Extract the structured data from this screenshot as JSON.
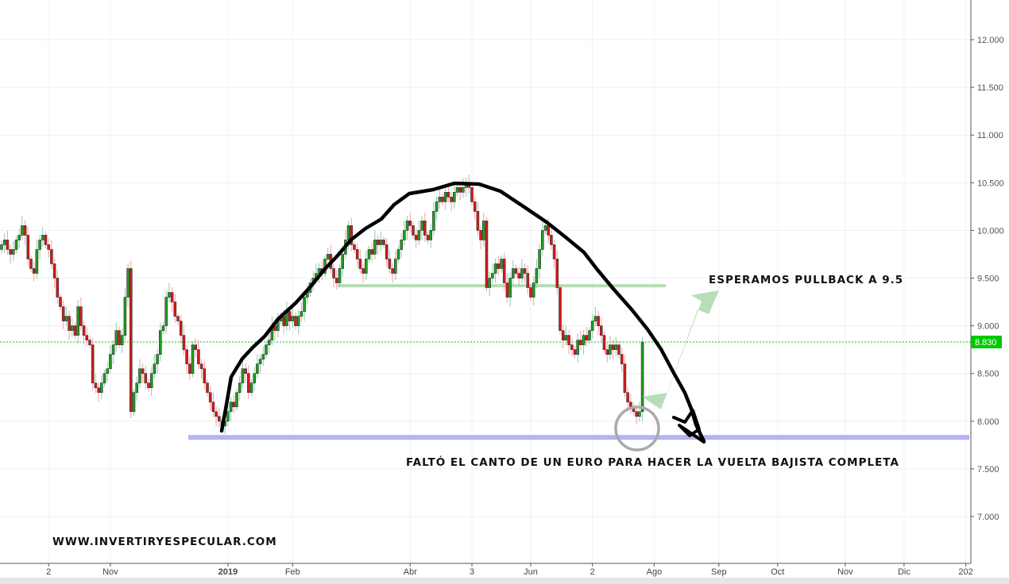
{
  "chart_data": {
    "type": "candlestick",
    "ylim": [
      6.6,
      12.4
    ],
    "y_ticks": [
      "12.000",
      "11.500",
      "11.000",
      "10.500",
      "10.000",
      "9.500",
      "9.000",
      "8.500",
      "8.000",
      "7.500",
      "7.000"
    ],
    "y_tick_values": [
      12,
      11.5,
      11,
      10.5,
      10,
      9.5,
      9,
      8.5,
      8,
      7.5,
      7
    ],
    "x_ticks": [
      {
        "label": "2",
        "bar": 16
      },
      {
        "label": "Nov",
        "bar": 37
      },
      {
        "label": "2019",
        "bar": 77
      },
      {
        "label": "Feb",
        "bar": 99
      },
      {
        "label": "Abr",
        "bar": 139
      },
      {
        "label": "3",
        "bar": 160
      },
      {
        "label": "Jun",
        "bar": 180
      },
      {
        "label": "2",
        "bar": 201
      },
      {
        "label": "Ago",
        "bar": 222
      },
      {
        "label": "Sep",
        "bar": 244
      },
      {
        "label": "Oct",
        "bar": 264
      },
      {
        "label": "Nov",
        "bar": 287
      },
      {
        "label": "Dic",
        "bar": 307
      },
      {
        "label": "202",
        "bar": 328
      }
    ],
    "closes": [
      9.85,
      9.9,
      9.8,
      9.75,
      9.8,
      9.9,
      9.95,
      10.05,
      9.95,
      9.7,
      9.6,
      9.55,
      9.8,
      9.9,
      9.95,
      9.85,
      9.8,
      9.65,
      9.5,
      9.3,
      9.2,
      9.05,
      9.1,
      8.95,
      9.0,
      8.9,
      9.2,
      9.0,
      8.9,
      8.85,
      8.8,
      8.4,
      8.35,
      8.3,
      8.4,
      8.5,
      8.55,
      8.7,
      8.8,
      8.95,
      8.8,
      8.9,
      9.3,
      9.6,
      8.1,
      8.3,
      8.4,
      8.55,
      8.5,
      8.4,
      8.35,
      8.5,
      8.6,
      8.7,
      8.95,
      9.0,
      9.3,
      9.35,
      9.25,
      9.1,
      9.05,
      8.9,
      8.75,
      8.6,
      8.5,
      8.8,
      8.75,
      8.6,
      8.55,
      8.4,
      8.3,
      8.2,
      8.1,
      8.05,
      8.0,
      7.95,
      8.0,
      8.1,
      8.2,
      8.15,
      8.3,
      8.4,
      8.55,
      8.5,
      8.3,
      8.4,
      8.5,
      8.6,
      8.65,
      8.7,
      8.8,
      8.85,
      9.0,
      8.95,
      9.05,
      9.1,
      9.0,
      9.15,
      9.05,
      9.1,
      9.0,
      9.1,
      9.15,
      9.3,
      9.35,
      9.45,
      9.5,
      9.55,
      9.6,
      9.55,
      9.7,
      9.75,
      9.6,
      9.5,
      9.45,
      9.6,
      9.75,
      9.9,
      10.05,
      9.85,
      9.8,
      9.7,
      9.6,
      9.55,
      9.7,
      9.8,
      9.75,
      9.9,
      9.85,
      9.9,
      9.85,
      9.7,
      9.6,
      9.55,
      9.7,
      9.8,
      9.9,
      10.0,
      10.1,
      10.05,
      9.95,
      9.9,
      10.0,
      10.1,
      9.95,
      9.9,
      10.0,
      10.2,
      10.3,
      10.35,
      10.3,
      10.4,
      10.35,
      10.3,
      10.4,
      10.45,
      10.4,
      10.45,
      10.5,
      10.45,
      10.3,
      10.2,
      10.0,
      9.9,
      10.1,
      9.4,
      9.5,
      9.55,
      9.65,
      9.6,
      9.7,
      9.45,
      9.3,
      9.5,
      9.6,
      9.55,
      9.5,
      9.6,
      9.55,
      9.4,
      9.3,
      9.45,
      9.6,
      9.8,
      10.0,
      10.05,
      9.95,
      9.85,
      9.7,
      9.4,
      8.95,
      8.85,
      8.9,
      8.8,
      8.75,
      8.7,
      8.85,
      8.8,
      8.9,
      8.85,
      8.95,
      9.05,
      9.1,
      9.0,
      8.9,
      8.75,
      8.7,
      8.8,
      8.75,
      8.8,
      8.7,
      8.6,
      8.3,
      8.2,
      8.15,
      8.1,
      8.05,
      8.1,
      8.83
    ],
    "last_price": "8.830",
    "last_price_value": 8.83,
    "support_level": 7.83,
    "resistance_level": 9.42,
    "colors": {
      "up": "#1e9e1e",
      "down": "#d81818",
      "last_price": "#00c800",
      "support": "#b3b3f5",
      "resistance": "#b7dbb7",
      "arc": "#000000"
    }
  },
  "annotations": {
    "pullback": "ESPERAMOS PULLBACK A 9.5",
    "missing": "FALTÓ EL CANTO DE UN EURO PARA HACER LA VUELTA BAJISTA COMPLETA",
    "website": "WWW.INVERTIRYESPECULAR.COM"
  }
}
